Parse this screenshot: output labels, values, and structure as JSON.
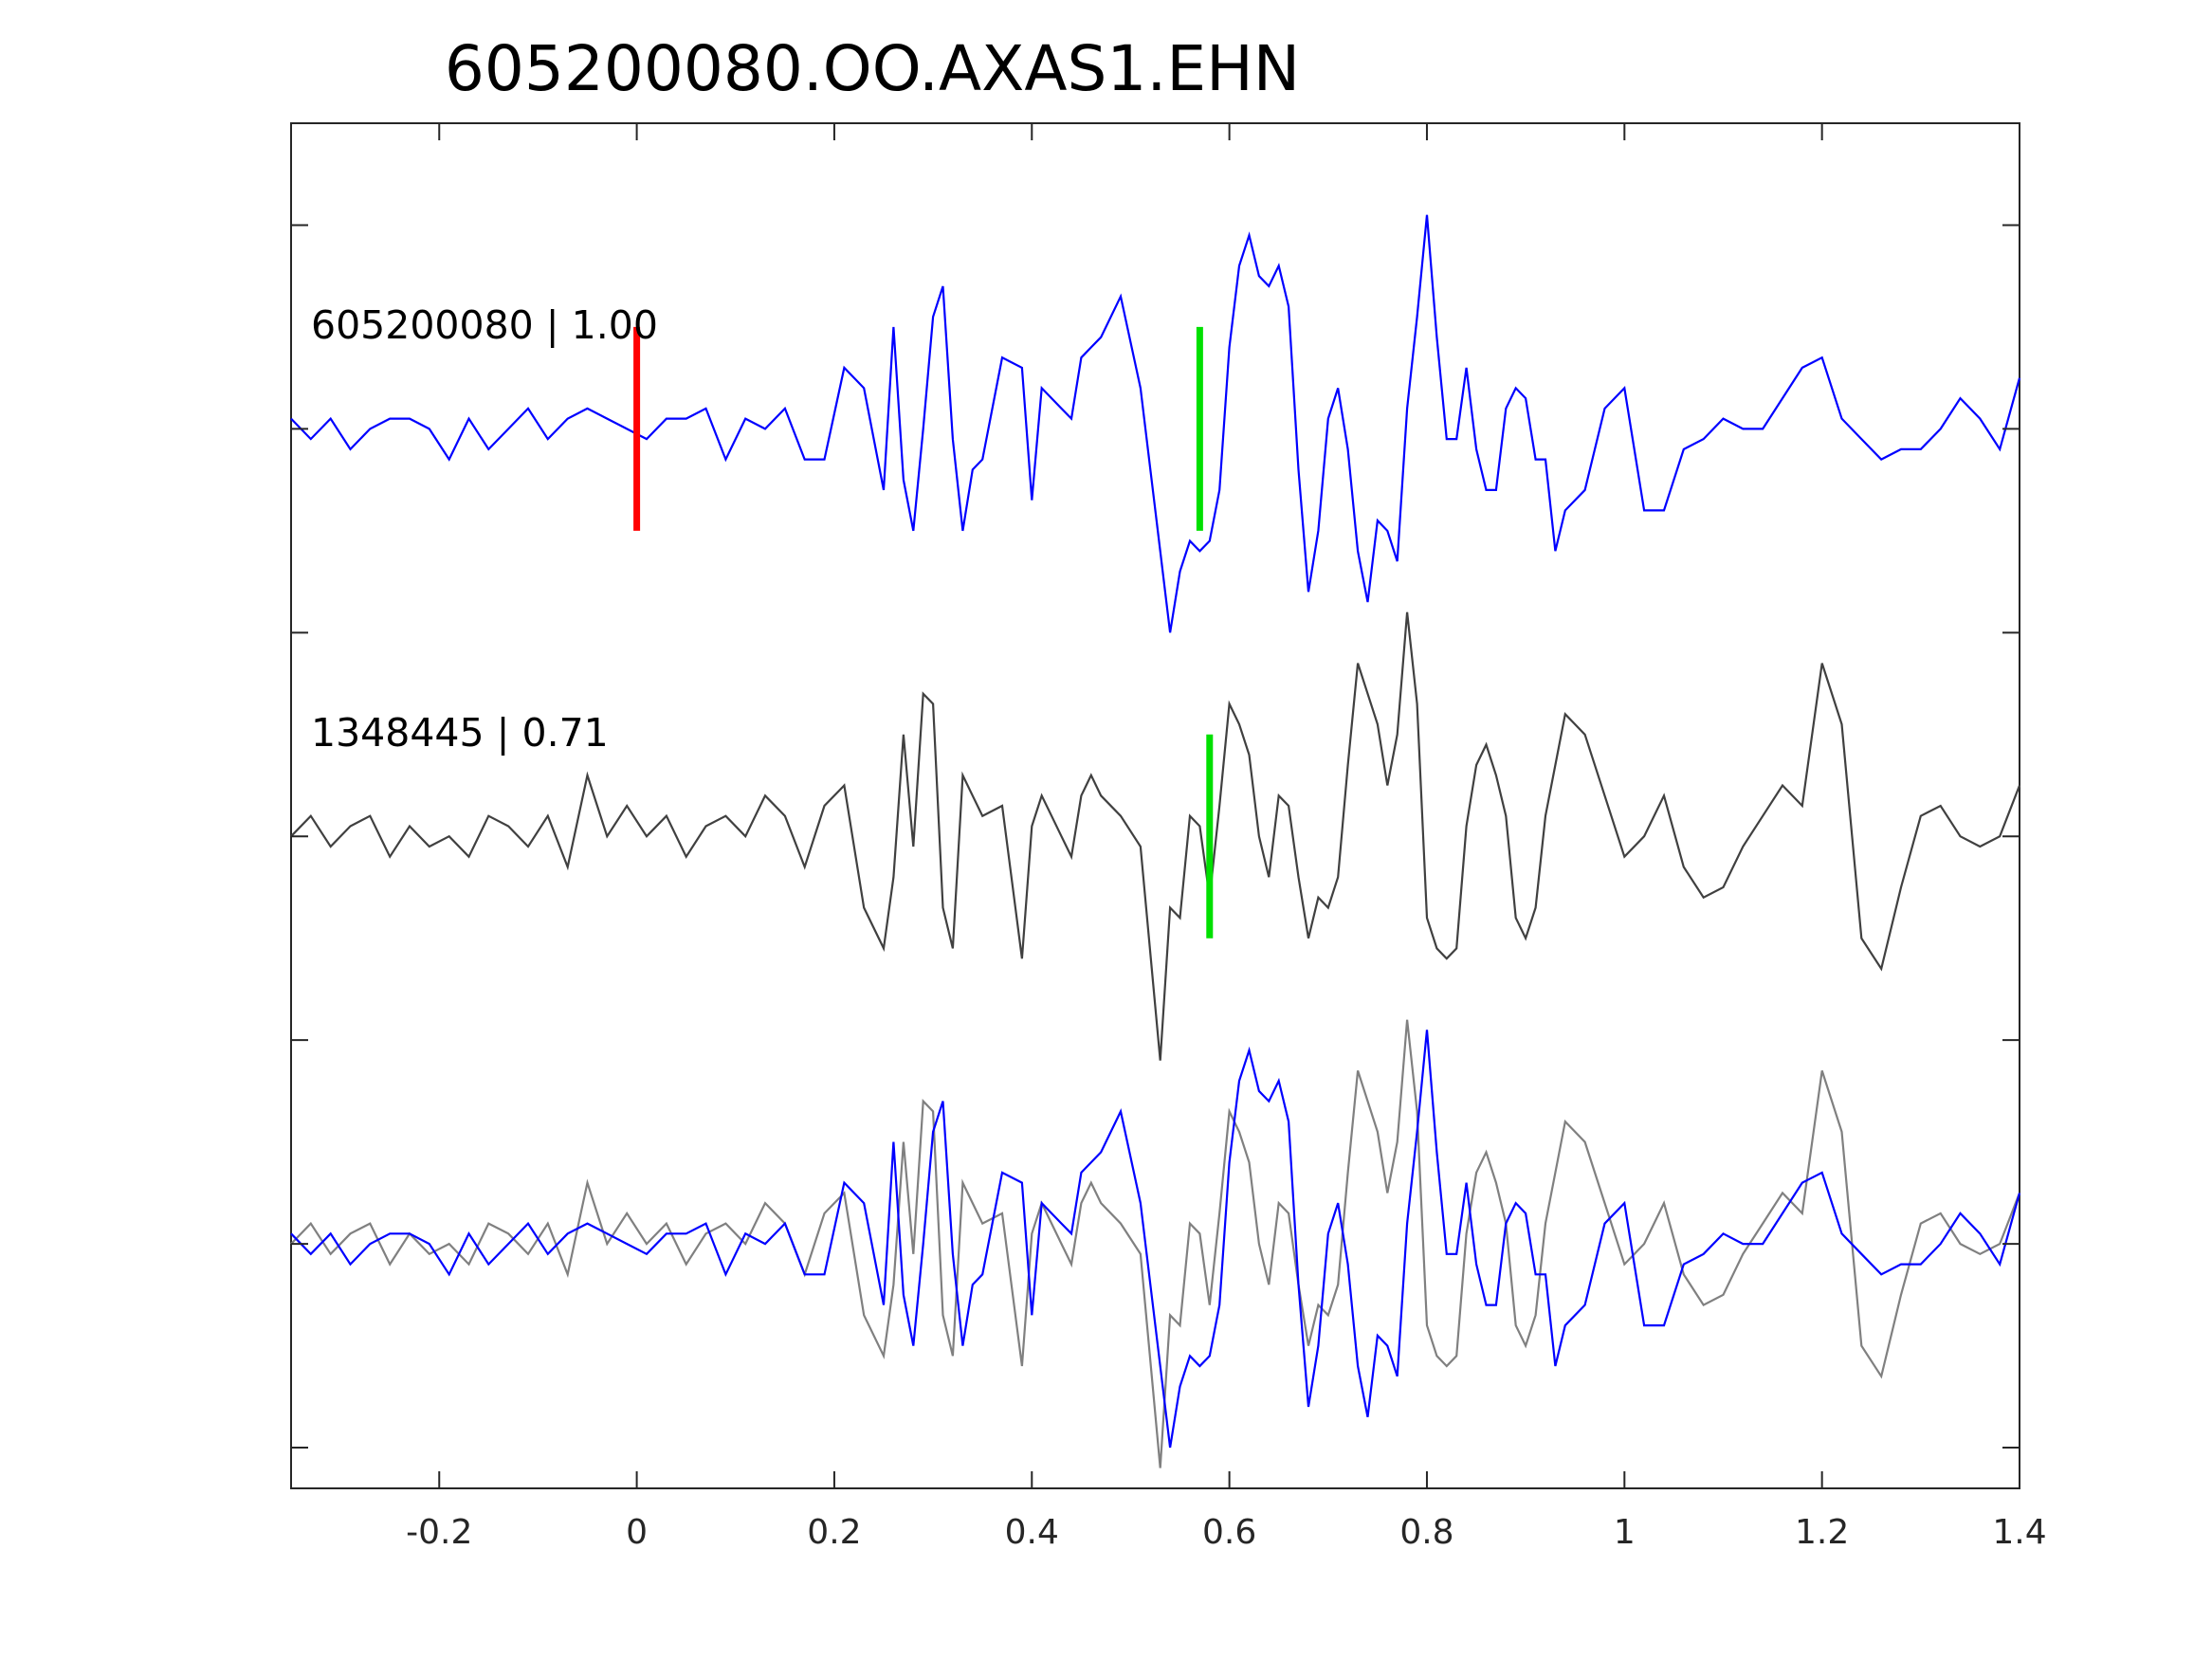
{
  "chart_data": {
    "type": "line",
    "title": "605200080.OO.AXAS1.EHN",
    "xlabel": "",
    "ylabel": "",
    "xlim": [
      -0.35,
      1.4
    ],
    "x_ticks": [
      -0.2,
      0,
      0.2,
      0.4,
      0.6,
      0.8,
      1,
      1.2,
      1.4
    ],
    "x_tick_labels": [
      "-0.2",
      "0",
      "0.2",
      "0.4",
      "0.6",
      "0.8",
      "1",
      "1.2",
      "1.4"
    ],
    "y_tick_labels": [],
    "grid": false,
    "legend": "none",
    "colors": {
      "template": "#0000ff",
      "detection": "#404040",
      "overlay_detection": "#808080",
      "p_pick": "#ff0000",
      "s_pick": "#00e000",
      "axes": "#262626"
    },
    "traces": [
      {
        "label": "605200080 | 1.00",
        "color": "#0000ff",
        "baseline": 2,
        "amplitude": 0.5,
        "picks": [
          {
            "phase": "P",
            "time": 0.0,
            "color": "#ff0000"
          },
          {
            "phase": "S",
            "time": 0.57,
            "color": "#00e000"
          }
        ]
      },
      {
        "label": "1348445 | 0.71",
        "color": "#404040",
        "baseline": 0,
        "amplitude": 0.5,
        "picks": [
          {
            "phase": "S",
            "time": 0.58,
            "color": "#00e000"
          }
        ]
      },
      {
        "label": "",
        "overlay": true,
        "baseline": -2,
        "amplitude": 0.5
      }
    ],
    "series": [
      {
        "id": "template",
        "color": "#0000ff",
        "x": [
          -0.35,
          -0.33,
          -0.31,
          -0.29,
          -0.27,
          -0.25,
          -0.23,
          -0.21,
          -0.19,
          -0.17,
          -0.15,
          -0.13,
          -0.11,
          -0.09,
          -0.07,
          -0.05,
          -0.03,
          -0.01,
          0.01,
          0.03,
          0.05,
          0.07,
          0.09,
          0.11,
          0.13,
          0.15,
          0.17,
          0.19,
          0.21,
          0.23,
          0.25,
          0.26,
          0.27,
          0.28,
          0.29,
          0.3,
          0.31,
          0.32,
          0.33,
          0.34,
          0.35,
          0.37,
          0.39,
          0.4,
          0.41,
          0.42,
          0.43,
          0.44,
          0.45,
          0.46,
          0.47,
          0.49,
          0.51,
          0.53,
          0.54,
          0.55,
          0.56,
          0.57,
          0.58,
          0.59,
          0.6,
          0.61,
          0.62,
          0.63,
          0.64,
          0.65,
          0.66,
          0.67,
          0.68,
          0.69,
          0.7,
          0.71,
          0.72,
          0.73,
          0.74,
          0.75,
          0.76,
          0.77,
          0.78,
          0.79,
          0.8,
          0.81,
          0.82,
          0.83,
          0.84,
          0.85,
          0.86,
          0.87,
          0.88,
          0.89,
          0.9,
          0.91,
          0.92,
          0.93,
          0.94,
          0.96,
          0.98,
          1.0,
          1.02,
          1.04,
          1.06,
          1.08,
          1.1,
          1.12,
          1.14,
          1.16,
          1.18,
          1.2,
          1.22,
          1.24,
          1.26,
          1.28,
          1.3,
          1.32,
          1.34,
          1.36,
          1.38,
          1.4
        ],
        "y": [
          0.05,
          -0.05,
          0.05,
          -0.1,
          0.0,
          0.05,
          0.05,
          0.0,
          -0.15,
          0.05,
          -0.1,
          0.0,
          0.1,
          -0.05,
          0.05,
          0.1,
          0.05,
          0.0,
          -0.05,
          0.05,
          0.05,
          0.1,
          -0.15,
          0.05,
          0.0,
          0.1,
          -0.15,
          -0.15,
          0.3,
          0.2,
          -0.3,
          0.5,
          -0.25,
          -0.5,
          0.0,
          0.55,
          0.7,
          -0.05,
          -0.5,
          -0.2,
          -0.15,
          0.35,
          0.3,
          -0.35,
          0.2,
          0.15,
          0.1,
          0.05,
          0.35,
          0.4,
          0.45,
          0.65,
          0.2,
          -0.6,
          -1.0,
          -0.7,
          -0.55,
          -0.6,
          -0.55,
          -0.3,
          0.4,
          0.8,
          0.95,
          0.75,
          0.7,
          0.8,
          0.6,
          -0.2,
          -0.8,
          -0.5,
          0.05,
          0.2,
          -0.1,
          -0.6,
          -0.85,
          -0.45,
          -0.5,
          -0.65,
          0.1,
          0.55,
          1.05,
          0.45,
          -0.05,
          -0.05,
          0.3,
          -0.1,
          -0.3,
          -0.3,
          0.1,
          0.2,
          0.15,
          -0.15,
          -0.15,
          -0.6,
          -0.4,
          -0.3,
          0.1,
          0.2,
          -0.4,
          -0.4,
          -0.1,
          -0.05,
          0.05,
          0.0,
          0.0,
          0.15,
          0.3,
          0.35,
          0.05,
          -0.05,
          -0.15,
          -0.1,
          -0.1,
          0.0,
          0.15,
          0.05,
          -0.1,
          0.25
        ]
      },
      {
        "id": "detection",
        "color": "#404040",
        "x": [
          -0.35,
          -0.33,
          -0.31,
          -0.29,
          -0.27,
          -0.25,
          -0.23,
          -0.21,
          -0.19,
          -0.17,
          -0.15,
          -0.13,
          -0.11,
          -0.09,
          -0.07,
          -0.05,
          -0.03,
          -0.01,
          0.01,
          0.03,
          0.05,
          0.07,
          0.09,
          0.11,
          0.13,
          0.15,
          0.17,
          0.19,
          0.21,
          0.23,
          0.25,
          0.26,
          0.27,
          0.28,
          0.29,
          0.3,
          0.31,
          0.32,
          0.33,
          0.34,
          0.35,
          0.37,
          0.39,
          0.4,
          0.41,
          0.42,
          0.43,
          0.44,
          0.45,
          0.46,
          0.47,
          0.49,
          0.51,
          0.53,
          0.54,
          0.55,
          0.56,
          0.57,
          0.58,
          0.59,
          0.6,
          0.61,
          0.62,
          0.63,
          0.64,
          0.65,
          0.66,
          0.67,
          0.68,
          0.69,
          0.7,
          0.71,
          0.72,
          0.73,
          0.74,
          0.75,
          0.76,
          0.77,
          0.78,
          0.79,
          0.8,
          0.81,
          0.82,
          0.83,
          0.84,
          0.85,
          0.86,
          0.87,
          0.88,
          0.89,
          0.9,
          0.91,
          0.92,
          0.93,
          0.94,
          0.96,
          0.98,
          1.0,
          1.02,
          1.04,
          1.06,
          1.08,
          1.1,
          1.12,
          1.14,
          1.16,
          1.18,
          1.2,
          1.22,
          1.24,
          1.26,
          1.28,
          1.3,
          1.32,
          1.34,
          1.36,
          1.38,
          1.4
        ],
        "y": [
          0.0,
          0.1,
          -0.05,
          0.05,
          0.1,
          -0.1,
          0.05,
          -0.05,
          0.0,
          -0.1,
          0.1,
          0.05,
          -0.05,
          0.1,
          -0.15,
          0.3,
          0.0,
          0.15,
          0.0,
          0.1,
          -0.1,
          0.05,
          0.1,
          0.0,
          0.2,
          0.1,
          -0.15,
          0.15,
          0.25,
          -0.35,
          -0.55,
          -0.2,
          0.5,
          -0.05,
          0.7,
          0.65,
          -0.35,
          -0.55,
          0.3,
          0.2,
          0.1,
          0.15,
          -0.6,
          0.05,
          0.2,
          0.1,
          0.0,
          -0.1,
          0.2,
          0.3,
          0.2,
          0.1,
          -0.05,
          -1.1,
          -0.35,
          -0.4,
          0.1,
          0.05,
          -0.3,
          0.15,
          0.65,
          0.55,
          0.4,
          0.0,
          -0.2,
          0.2,
          0.15,
          -0.2,
          -0.5,
          -0.3,
          -0.35,
          -0.2,
          0.35,
          0.85,
          0.7,
          0.55,
          0.25,
          0.5,
          1.1,
          0.65,
          -0.4,
          -0.55,
          -0.6,
          -0.55,
          0.05,
          0.35,
          0.45,
          0.3,
          0.1,
          -0.4,
          -0.5,
          -0.35,
          0.1,
          0.35,
          0.6,
          0.5,
          0.2,
          -0.1,
          0.0,
          0.2,
          -0.15,
          -0.3,
          -0.25,
          -0.05,
          0.1,
          0.25,
          0.15,
          0.85,
          0.55,
          -0.5,
          -0.65,
          -0.25,
          0.1,
          0.15,
          0.0,
          -0.05,
          0.0,
          0.25
        ]
      }
    ]
  }
}
